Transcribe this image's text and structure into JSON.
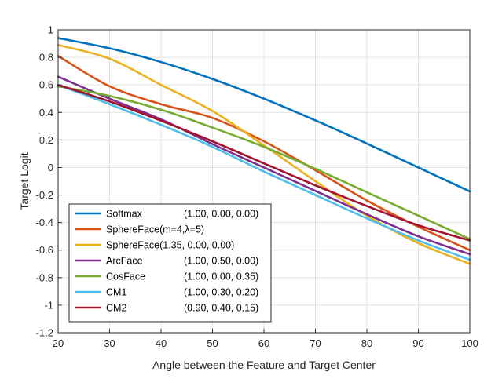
{
  "chart_data": {
    "type": "line",
    "xlabel": "Angle between the Feature and Target Center",
    "ylabel": "Target Logit",
    "xlim": [
      20,
      100
    ],
    "ylim": [
      -1.2,
      1
    ],
    "xticks": [
      20,
      30,
      40,
      50,
      60,
      70,
      80,
      90,
      100
    ],
    "yticks": [
      -1.2,
      -1,
      -0.8,
      -0.6,
      -0.4,
      -0.2,
      0,
      0.2,
      0.4,
      0.6,
      0.8,
      1
    ],
    "xtick_labels": [
      "20",
      "30",
      "40",
      "50",
      "60",
      "70",
      "80",
      "90",
      "100"
    ],
    "ytick_labels": [
      "-1.2",
      "-1",
      "-0.8",
      "-0.6",
      "-0.4",
      "-0.2",
      "0",
      "0.2",
      "0.4",
      "0.6",
      "0.8",
      "1"
    ],
    "grid": true,
    "legend_position": "bottom-left",
    "series": [
      {
        "name": "Softmax",
        "params": "(1.00, 0.00, 0.00)",
        "color": "#0072BD",
        "x": [
          20,
          30,
          40,
          50,
          60,
          70,
          80,
          90,
          100
        ],
        "y": [
          0.94,
          0.866,
          0.766,
          0.643,
          0.5,
          0.342,
          0.174,
          0.0,
          -0.174
        ]
      },
      {
        "name": "SphereFace(m=4,λ=5)",
        "params": "",
        "color": "#D95319",
        "x": [
          20,
          30,
          40,
          50,
          60,
          70,
          80,
          90,
          100
        ],
        "y": [
          0.81,
          0.59,
          0.46,
          0.36,
          0.19,
          -0.02,
          -0.24,
          -0.43,
          -0.6
        ]
      },
      {
        "name": "SphereFace(1.35, 0.00, 0.00)",
        "params": "",
        "color": "#EDB120",
        "x": [
          20,
          30,
          40,
          50,
          60,
          70,
          80,
          90,
          100
        ],
        "y": [
          0.89,
          0.79,
          0.6,
          0.41,
          0.16,
          -0.1,
          -0.35,
          -0.55,
          -0.7
        ]
      },
      {
        "name": "ArcFace",
        "params": "(1.00, 0.50, 0.00)",
        "color": "#7E2F8E",
        "x": [
          20,
          30,
          40,
          50,
          60,
          70,
          80,
          90,
          100
        ],
        "y": [
          0.66,
          0.5,
          0.35,
          0.17,
          -0.0,
          -0.17,
          -0.34,
          -0.5,
          -0.63
        ]
      },
      {
        "name": "CosFace",
        "params": "(1.00, 0.00, 0.35)",
        "color": "#77AC30",
        "x": [
          20,
          30,
          40,
          50,
          60,
          70,
          80,
          90,
          100
        ],
        "y": [
          0.59,
          0.52,
          0.42,
          0.29,
          0.15,
          -0.01,
          -0.18,
          -0.35,
          -0.52
        ]
      },
      {
        "name": "CM1",
        "params": "(1.00, 0.30, 0.20)",
        "color": "#4DBEEE",
        "x": [
          20,
          30,
          40,
          50,
          60,
          70,
          80,
          90,
          100
        ],
        "y": [
          0.6,
          0.46,
          0.31,
          0.15,
          -0.03,
          -0.2,
          -0.37,
          -0.53,
          -0.67
        ]
      },
      {
        "name": "CM2",
        "params": "(0.90, 0.40, 0.15)",
        "color": "#A2142F",
        "x": [
          20,
          30,
          40,
          50,
          60,
          70,
          80,
          90,
          100
        ],
        "y": [
          0.6,
          0.48,
          0.34,
          0.19,
          0.03,
          -0.13,
          -0.28,
          -0.42,
          -0.53
        ]
      }
    ]
  }
}
